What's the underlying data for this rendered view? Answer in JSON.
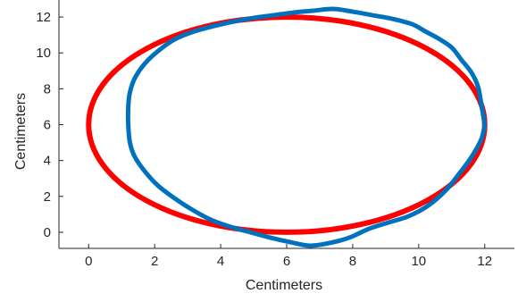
{
  "chart_data": {
    "type": "line",
    "title": "",
    "xlabel": "Centimeters",
    "ylabel": "Centimeters",
    "xlim": [
      -0.9,
      12.9
    ],
    "ylim": [
      -0.9,
      12.95
    ],
    "xticks": [
      0,
      2,
      4,
      6,
      8,
      10,
      12
    ],
    "yticks": [
      0,
      2,
      4,
      6,
      8,
      10,
      12
    ],
    "grid": false,
    "colors": {
      "ellipse": "#ff0000",
      "measured": "#0072bd",
      "axis": "#262626"
    },
    "series": [
      {
        "kind": "ellipse",
        "center": [
          6,
          6
        ],
        "semi_axes": [
          6,
          6
        ],
        "line_color": "#ff0000"
      },
      {
        "kind": "closed-curve",
        "line_color": "#0072bd",
        "x": [
          12.0,
          11.9,
          11.8,
          11.6,
          11.3,
          11.0,
          10.6,
          10.2,
          9.8,
          9.2,
          8.6,
          8.0,
          7.4,
          6.8,
          6.2,
          5.6,
          5.0,
          4.4,
          3.8,
          3.2,
          2.6,
          2.1,
          1.7,
          1.4,
          1.25,
          1.2,
          1.2,
          1.25,
          1.4,
          1.7,
          2.1,
          2.6,
          3.1,
          3.7,
          4.3,
          4.9,
          5.5,
          6.1,
          6.7,
          7.3,
          7.9,
          8.5,
          9.1,
          9.7,
          10.3,
          10.8,
          11.2,
          11.6,
          11.9,
          12.0
        ],
        "y": [
          6.0,
          7.1,
          8.1,
          8.9,
          9.6,
          10.3,
          10.8,
          11.2,
          11.6,
          11.9,
          12.1,
          12.3,
          12.45,
          12.35,
          12.25,
          12.1,
          11.95,
          11.75,
          11.5,
          11.2,
          10.75,
          10.1,
          9.4,
          8.6,
          7.8,
          7.0,
          6.0,
          5.0,
          4.2,
          3.4,
          2.6,
          1.9,
          1.3,
          0.7,
          0.3,
          0.0,
          -0.3,
          -0.55,
          -0.75,
          -0.6,
          -0.3,
          0.2,
          0.55,
          0.9,
          1.5,
          2.3,
          3.2,
          4.2,
          5.2,
          6.0
        ]
      }
    ]
  }
}
